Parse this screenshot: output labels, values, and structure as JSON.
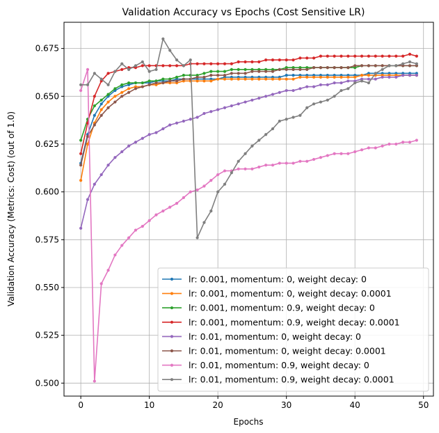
{
  "chart_data": {
    "type": "line",
    "title": "Validation Accuracy vs Epochs (Cost Sensitive LR)",
    "xlabel": "Epochs",
    "ylabel": "Validation Accuracy (Metrics: Cost) (out of 1.0)",
    "xlim": [
      -2.45,
      51.45
    ],
    "ylim": [
      0.4932,
      0.6887
    ],
    "xticks": [
      0,
      10,
      20,
      30,
      40,
      50
    ],
    "yticks": [
      0.5,
      0.525,
      0.55,
      0.575,
      0.6,
      0.625,
      0.65,
      0.675
    ],
    "xtick_labels": [
      "0",
      "10",
      "20",
      "30",
      "40",
      "50"
    ],
    "ytick_labels": [
      "0.500",
      "0.525",
      "0.550",
      "0.575",
      "0.600",
      "0.625",
      "0.650",
      "0.675"
    ],
    "grid": true,
    "legend_position": "lower-right",
    "series": [
      {
        "name": "lr: 0.001, momentum: 0, weight decay: 0",
        "color": "#1f77b4",
        "values": [
          0.615,
          0.63,
          0.64,
          0.646,
          0.65,
          0.653,
          0.655,
          0.656,
          0.657,
          0.657,
          0.657,
          0.658,
          0.658,
          0.658,
          0.659,
          0.659,
          0.659,
          0.659,
          0.659,
          0.659,
          0.659,
          0.66,
          0.66,
          0.66,
          0.66,
          0.66,
          0.66,
          0.66,
          0.66,
          0.66,
          0.661,
          0.661,
          0.661,
          0.661,
          0.661,
          0.661,
          0.661,
          0.661,
          0.661,
          0.661,
          0.661,
          0.661,
          0.662,
          0.662,
          0.662,
          0.662,
          0.662,
          0.662,
          0.662,
          0.662
        ]
      },
      {
        "name": "lr: 0.001, momentum: 0, weight decay: 0.0001",
        "color": "#ff7f0e",
        "values": [
          0.606,
          0.625,
          0.636,
          0.643,
          0.647,
          0.65,
          0.652,
          0.654,
          0.655,
          0.655,
          0.656,
          0.656,
          0.657,
          0.657,
          0.657,
          0.658,
          0.658,
          0.658,
          0.658,
          0.658,
          0.659,
          0.659,
          0.659,
          0.659,
          0.659,
          0.659,
          0.659,
          0.659,
          0.659,
          0.659,
          0.659,
          0.659,
          0.66,
          0.66,
          0.66,
          0.66,
          0.66,
          0.66,
          0.66,
          0.66,
          0.66,
          0.661,
          0.661,
          0.661,
          0.661,
          0.661,
          0.661,
          0.661,
          0.661,
          0.661
        ]
      },
      {
        "name": "lr: 0.001, momentum: 0.9, weight decay: 0",
        "color": "#2ca02c",
        "values": [
          0.627,
          0.638,
          0.645,
          0.648,
          0.651,
          0.654,
          0.656,
          0.657,
          0.657,
          0.657,
          0.658,
          0.658,
          0.659,
          0.659,
          0.66,
          0.661,
          0.661,
          0.661,
          0.662,
          0.663,
          0.663,
          0.663,
          0.664,
          0.664,
          0.664,
          0.664,
          0.664,
          0.664,
          0.664,
          0.664,
          0.665,
          0.665,
          0.665,
          0.665,
          0.665,
          0.665,
          0.665,
          0.665,
          0.665,
          0.665,
          0.665,
          0.666,
          0.666,
          0.666,
          0.666,
          0.666,
          0.666,
          0.666,
          0.666,
          0.666
        ]
      },
      {
        "name": "lr: 0.001, momentum: 0.9, weight decay: 0.0001",
        "color": "#d62728",
        "values": [
          0.62,
          0.636,
          0.65,
          0.658,
          0.662,
          0.663,
          0.664,
          0.665,
          0.665,
          0.666,
          0.666,
          0.666,
          0.666,
          0.666,
          0.666,
          0.666,
          0.667,
          0.667,
          0.667,
          0.667,
          0.667,
          0.667,
          0.667,
          0.668,
          0.668,
          0.668,
          0.668,
          0.669,
          0.669,
          0.669,
          0.669,
          0.669,
          0.67,
          0.67,
          0.67,
          0.671,
          0.671,
          0.671,
          0.671,
          0.671,
          0.671,
          0.671,
          0.671,
          0.671,
          0.671,
          0.671,
          0.671,
          0.671,
          0.672,
          0.671
        ]
      },
      {
        "name": "lr: 0.01, momentum: 0, weight decay: 0",
        "color": "#9467bd",
        "values": [
          0.581,
          0.596,
          0.604,
          0.609,
          0.614,
          0.618,
          0.621,
          0.624,
          0.626,
          0.628,
          0.63,
          0.631,
          0.633,
          0.635,
          0.636,
          0.637,
          0.638,
          0.639,
          0.641,
          0.642,
          0.643,
          0.644,
          0.645,
          0.646,
          0.647,
          0.648,
          0.649,
          0.65,
          0.651,
          0.652,
          0.653,
          0.653,
          0.654,
          0.655,
          0.655,
          0.656,
          0.656,
          0.657,
          0.657,
          0.658,
          0.658,
          0.659,
          0.659,
          0.659,
          0.66,
          0.66,
          0.66,
          0.661,
          0.661,
          0.661
        ]
      },
      {
        "name": "lr: 0.01, momentum: 0, weight decay: 0.0001",
        "color": "#8c564b",
        "values": [
          0.614,
          0.629,
          0.635,
          0.64,
          0.644,
          0.647,
          0.65,
          0.652,
          0.654,
          0.655,
          0.656,
          0.657,
          0.657,
          0.658,
          0.658,
          0.659,
          0.659,
          0.66,
          0.66,
          0.661,
          0.661,
          0.661,
          0.662,
          0.662,
          0.662,
          0.663,
          0.663,
          0.663,
          0.663,
          0.664,
          0.664,
          0.664,
          0.664,
          0.664,
          0.665,
          0.665,
          0.665,
          0.665,
          0.665,
          0.665,
          0.666,
          0.666,
          0.666,
          0.666,
          0.666,
          0.666,
          0.666,
          0.666,
          0.666,
          0.666
        ]
      },
      {
        "name": "lr: 0.01, momentum: 0.9, weight decay: 0",
        "color": "#e377c2",
        "values": [
          0.653,
          0.664,
          0.501,
          0.552,
          0.559,
          0.567,
          0.572,
          0.576,
          0.58,
          0.582,
          0.585,
          0.588,
          0.59,
          0.592,
          0.594,
          0.597,
          0.6,
          0.601,
          0.603,
          0.606,
          0.609,
          0.611,
          0.611,
          0.612,
          0.612,
          0.612,
          0.613,
          0.614,
          0.614,
          0.615,
          0.615,
          0.615,
          0.616,
          0.616,
          0.617,
          0.618,
          0.619,
          0.62,
          0.62,
          0.62,
          0.621,
          0.622,
          0.623,
          0.623,
          0.624,
          0.625,
          0.625,
          0.626,
          0.626,
          0.627
        ]
      },
      {
        "name": "lr: 0.01, momentum: 0.9, weight decay: 0.0001",
        "color": "#7f7f7f",
        "values": [
          0.656,
          0.656,
          0.662,
          0.659,
          0.656,
          0.663,
          0.667,
          0.664,
          0.666,
          0.668,
          0.663,
          0.664,
          0.68,
          0.674,
          0.669,
          0.666,
          0.669,
          0.576,
          0.584,
          0.59,
          0.6,
          0.604,
          0.61,
          0.616,
          0.62,
          0.624,
          0.627,
          0.63,
          0.633,
          0.637,
          0.638,
          0.639,
          0.64,
          0.644,
          0.646,
          0.647,
          0.648,
          0.65,
          0.653,
          0.654,
          0.657,
          0.658,
          0.657,
          0.662,
          0.664,
          0.666,
          0.666,
          0.667,
          0.668,
          0.667
        ]
      }
    ]
  }
}
